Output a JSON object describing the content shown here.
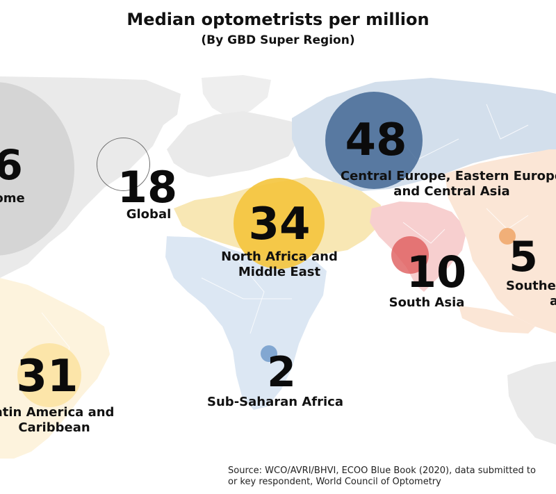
{
  "title": "Median optometrists per million",
  "subtitle": "(By GBD Super Region)",
  "regions": [
    {
      "id": "high-income",
      "value": "6",
      "label_lines": [
        "ome"
      ],
      "color": "#d7d7d7"
    },
    {
      "id": "global",
      "value": "18",
      "label_lines": [
        "Global"
      ],
      "color": "none"
    },
    {
      "id": "central-europe",
      "value": "48",
      "label_lines": [
        "Central Europe, Eastern Europe",
        "and Central Asia"
      ],
      "color": "#4f739d"
    },
    {
      "id": "north-africa",
      "value": "34",
      "label_lines": [
        "North Africa and",
        "Middle East"
      ],
      "color": "#f4c84a"
    },
    {
      "id": "south-asia",
      "value": "10",
      "label_lines": [
        "South Asia"
      ],
      "color": "#e17373"
    },
    {
      "id": "southeast-asia",
      "value": "5",
      "label_lines": [
        "Southe",
        "a"
      ],
      "color": "#f0b07c"
    },
    {
      "id": "latin-america",
      "value": "31",
      "label_lines": [
        "atin America and",
        "Caribbean"
      ],
      "color": "#fbe6ad"
    },
    {
      "id": "sub-saharan",
      "value": "2",
      "label_lines": [
        "Sub-Saharan Africa"
      ],
      "color": "#8fb4d8"
    }
  ],
  "source_lines": [
    "Source: WCO/AVRI/BHVI, ECOO Blue Book (2020), data submitted to",
    "or key respondent, World Council of Optometry"
  ],
  "map_colors": {
    "background_land": "#eceff1",
    "high_income": "#eaeaea",
    "central_europe": "#d3dfec",
    "north_africa": "#f8e7b4",
    "south_asia": "#f7cfcf",
    "southeast_asia": "#fbe6d6",
    "latin_america": "#fdf3dd",
    "sub_saharan": "#dce7f3"
  }
}
